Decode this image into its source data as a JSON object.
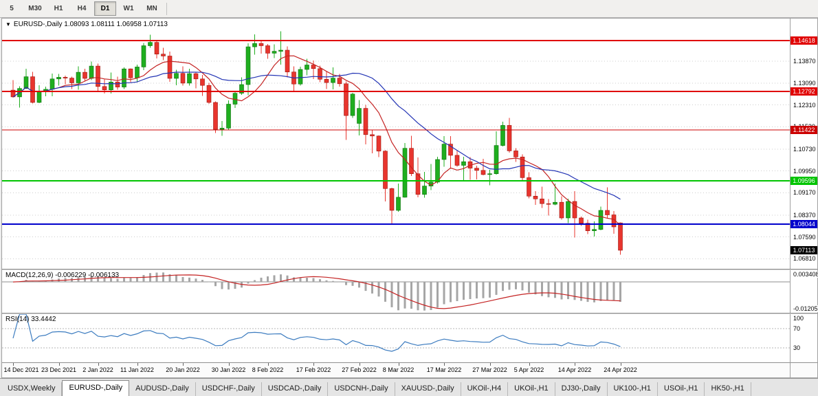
{
  "toolbar": {
    "timeframes": [
      {
        "label": "5",
        "active": false
      },
      {
        "label": "M30",
        "active": false
      },
      {
        "label": "H1",
        "active": false
      },
      {
        "label": "H4",
        "active": false
      },
      {
        "label": "D1",
        "active": true
      },
      {
        "label": "W1",
        "active": false
      },
      {
        "label": "MN",
        "active": false
      }
    ]
  },
  "chart": {
    "header": "EURUSD-,Daily 1.08093 1.08111 1.06958 1.07113",
    "dropdown_arrow": "▼"
  },
  "indicators": {
    "macd": {
      "label": "MACD(12,26,9) -0.006229 -0.006133",
      "scale_top": "0.003408",
      "scale_bottom": "-0.01205"
    },
    "rsi": {
      "label": "RSI(14) 33.4442",
      "scale_labels": [
        "100",
        "70",
        "30"
      ]
    }
  },
  "chart_data": [
    {
      "type": "candlestick",
      "title": "EURUSD-,Daily",
      "displayed_ohlc": [
        "1.08093",
        "1.08111",
        "1.06958",
        "1.07113"
      ],
      "ylim": [
        1.0645,
        1.154
      ],
      "up_color": "#1fae1f",
      "down_color": "#e8352e",
      "up_border": "#0b6e0b",
      "down_border": "#9c150e",
      "y_tick_labels": [
        "1.13870",
        "1.13090",
        "1.12310",
        "1.11530",
        "1.10730",
        "1.09950",
        "1.09170",
        "1.08370",
        "1.07590",
        "1.06810"
      ],
      "x_ticks": [
        {
          "index": 0,
          "label": "14 Dec 2021"
        },
        {
          "index": 7,
          "label": "23 Dec 2021"
        },
        {
          "index": 13,
          "label": "2 Jan 2022"
        },
        {
          "index": 19,
          "label": "11 Jan 2022"
        },
        {
          "index": 26,
          "label": "20 Jan 2022"
        },
        {
          "index": 33,
          "label": "30 Jan 2022"
        },
        {
          "index": 39,
          "label": "8 Feb 2022"
        },
        {
          "index": 46,
          "label": "17 Feb 2022"
        },
        {
          "index": 53,
          "label": "27 Feb 2022"
        },
        {
          "index": 59,
          "label": "8 Mar 2022"
        },
        {
          "index": 66,
          "label": "17 Mar 2022"
        },
        {
          "index": 73,
          "label": "27 Mar 2022"
        },
        {
          "index": 79,
          "label": "5 Apr 2022"
        },
        {
          "index": 86,
          "label": "14 Apr 2022"
        },
        {
          "index": 93,
          "label": "24 Apr 2022"
        }
      ],
      "hlines": [
        {
          "price": 1.14618,
          "label": "1.14618",
          "color": "#e00000",
          "width": 2
        },
        {
          "price": 1.12792,
          "label": "1.12792",
          "color": "#e00000",
          "width": 2
        },
        {
          "price": 1.11422,
          "label": "1.11422",
          "color": "#cc0000",
          "width": 1
        },
        {
          "price": 1.09596,
          "label": "1.09596",
          "color": "#00c400",
          "width": 2
        },
        {
          "price": 1.08044,
          "label": "1.08044",
          "color": "#0000cc",
          "width": 2
        }
      ],
      "last_price_badge": {
        "price": 1.07113,
        "label": "1.07113",
        "color": "#000000"
      },
      "overlays": [
        {
          "name": "ma-fast",
          "type": "sma",
          "period": 8,
          "color": "#c42222"
        },
        {
          "name": "ma-slow",
          "type": "sma",
          "period": 20,
          "color": "#2233b4"
        }
      ],
      "ohlc": [
        [
          1.1284,
          1.132,
          1.1257,
          1.126
        ],
        [
          1.126,
          1.1298,
          1.1222,
          1.129
        ],
        [
          1.129,
          1.136,
          1.1288,
          1.1332
        ],
        [
          1.1332,
          1.1349,
          1.1236,
          1.124
        ],
        [
          1.124,
          1.1302,
          1.1237,
          1.1278
        ],
        [
          1.1278,
          1.1296,
          1.1262,
          1.1287
        ],
        [
          1.1287,
          1.1343,
          1.1262,
          1.1324
        ],
        [
          1.1324,
          1.1342,
          1.13,
          1.133
        ],
        [
          1.133,
          1.1336,
          1.1305,
          1.1327
        ],
        [
          1.1327,
          1.1332,
          1.1288,
          1.131
        ],
        [
          1.131,
          1.1369,
          1.1285,
          1.1348
        ],
        [
          1.1348,
          1.136,
          1.1315,
          1.1326
        ],
        [
          1.1326,
          1.1386,
          1.132,
          1.137
        ],
        [
          1.137,
          1.1379,
          1.1279,
          1.1297
        ],
        [
          1.1297,
          1.1323,
          1.1272,
          1.1285
        ],
        [
          1.1285,
          1.1347,
          1.1272,
          1.1313
        ],
        [
          1.1313,
          1.1332,
          1.1285,
          1.1295
        ],
        [
          1.1295,
          1.1365,
          1.1288,
          1.136
        ],
        [
          1.136,
          1.1362,
          1.1313,
          1.1328
        ],
        [
          1.1328,
          1.1375,
          1.1314,
          1.1367
        ],
        [
          1.1367,
          1.1453,
          1.1355,
          1.1443
        ],
        [
          1.1443,
          1.1482,
          1.1435,
          1.1455
        ],
        [
          1.1455,
          1.1459,
          1.1398,
          1.1413
        ],
        [
          1.1413,
          1.1435,
          1.1391,
          1.1406
        ],
        [
          1.1406,
          1.1422,
          1.1314,
          1.1326
        ],
        [
          1.1326,
          1.1357,
          1.1301,
          1.1344
        ],
        [
          1.1344,
          1.1369,
          1.13,
          1.1309
        ],
        [
          1.1309,
          1.136,
          1.13,
          1.1343
        ],
        [
          1.1343,
          1.1349,
          1.129,
          1.1324
        ],
        [
          1.1324,
          1.1338,
          1.1263,
          1.1301
        ],
        [
          1.1301,
          1.131,
          1.1235,
          1.124
        ],
        [
          1.124,
          1.1244,
          1.1131,
          1.1144
        ],
        [
          1.1144,
          1.1174,
          1.1121,
          1.1148
        ],
        [
          1.1148,
          1.1248,
          1.1141,
          1.1234
        ],
        [
          1.1234,
          1.1279,
          1.122,
          1.1273
        ],
        [
          1.1273,
          1.133,
          1.1267,
          1.1304
        ],
        [
          1.1304,
          1.1451,
          1.1266,
          1.1439
        ],
        [
          1.1439,
          1.1483,
          1.1411,
          1.1451
        ],
        [
          1.1451,
          1.1464,
          1.1415,
          1.1443
        ],
        [
          1.1443,
          1.1449,
          1.1396,
          1.1416
        ],
        [
          1.1416,
          1.1448,
          1.1399,
          1.1423
        ],
        [
          1.1423,
          1.1494,
          1.1375,
          1.1427
        ],
        [
          1.1427,
          1.144,
          1.133,
          1.1349
        ],
        [
          1.1349,
          1.1369,
          1.128,
          1.1306
        ],
        [
          1.1306,
          1.1368,
          1.13,
          1.1358
        ],
        [
          1.1358,
          1.1396,
          1.1337,
          1.1374
        ],
        [
          1.1374,
          1.139,
          1.1324,
          1.1361
        ],
        [
          1.1361,
          1.1371,
          1.1312,
          1.1323
        ],
        [
          1.1323,
          1.1349,
          1.1288,
          1.1311
        ],
        [
          1.1311,
          1.1366,
          1.1287,
          1.1327
        ],
        [
          1.1327,
          1.1342,
          1.1296,
          1.1307
        ],
        [
          1.1307,
          1.1315,
          1.1106,
          1.1193
        ],
        [
          1.1193,
          1.1274,
          1.1185,
          1.127
        ],
        [
          1.1165,
          1.1249,
          1.1122,
          1.1219
        ],
        [
          1.1219,
          1.1232,
          1.109,
          1.1125
        ],
        [
          1.1125,
          1.1143,
          1.1058,
          1.112
        ],
        [
          1.112,
          1.1122,
          1.1045,
          1.1066
        ],
        [
          1.1066,
          1.1069,
          1.0886,
          1.0932
        ],
        [
          1.0932,
          1.0935,
          1.0806,
          1.0854
        ],
        [
          1.0854,
          1.095,
          1.0849,
          1.0901
        ],
        [
          1.0901,
          1.1095,
          1.0899,
          1.1076
        ],
        [
          1.1076,
          1.1121,
          1.0977,
          1.0985
        ],
        [
          1.0985,
          1.1043,
          1.0901,
          1.0911
        ],
        [
          1.0911,
          1.0992,
          1.09,
          1.0941
        ],
        [
          1.0941,
          1.102,
          1.0926,
          1.0955
        ],
        [
          1.0955,
          1.1046,
          1.095,
          1.1036
        ],
        [
          1.1036,
          1.1119,
          1.101,
          1.1091
        ],
        [
          1.1091,
          1.1119,
          1.1003,
          1.1051
        ],
        [
          1.1051,
          1.1069,
          1.101,
          1.1015
        ],
        [
          1.1015,
          1.1046,
          1.0962,
          1.1028
        ],
        [
          1.1028,
          1.1044,
          1.0963,
          1.1005
        ],
        [
          1.1005,
          1.1014,
          1.0965,
          1.0997
        ],
        [
          1.0997,
          1.1039,
          1.0979,
          1.0982
        ],
        [
          1.0982,
          1.0999,
          1.0944,
          1.0985
        ],
        [
          1.0985,
          1.1137,
          1.0982,
          1.1086
        ],
        [
          1.1086,
          1.1171,
          1.1083,
          1.1158
        ],
        [
          1.1158,
          1.1185,
          1.1061,
          1.1067
        ],
        [
          1.1067,
          1.1076,
          1.1027,
          1.1045
        ],
        [
          1.1045,
          1.1055,
          1.0961,
          1.0971
        ],
        [
          1.0971,
          1.0991,
          1.0897,
          1.0905
        ],
        [
          1.0905,
          1.0923,
          1.0874,
          1.0895
        ],
        [
          1.0895,
          1.0939,
          1.0863,
          1.0878
        ],
        [
          1.0878,
          1.0894,
          1.0836,
          1.0876
        ],
        [
          1.0876,
          1.095,
          1.0872,
          1.0883
        ],
        [
          1.0883,
          1.0904,
          1.0821,
          1.0827
        ],
        [
          1.0827,
          1.0896,
          1.0809,
          1.0886
        ],
        [
          1.0886,
          1.0923,
          1.0757,
          1.0827
        ],
        [
          1.0827,
          1.0832,
          1.0799,
          1.0808
        ],
        [
          1.0808,
          1.0821,
          1.0769,
          1.0781
        ],
        [
          1.0781,
          1.0815,
          1.0761,
          1.0786
        ],
        [
          1.0786,
          1.0867,
          1.0783,
          1.0854
        ],
        [
          1.0854,
          1.0936,
          1.0824,
          1.0838
        ],
        [
          1.0838,
          1.0852,
          1.077,
          1.0795
        ],
        [
          1.08093,
          1.08111,
          1.06958,
          1.07113
        ]
      ]
    },
    {
      "type": "macd",
      "params": [
        12,
        26,
        9
      ],
      "values_label": "-0.006229 -0.006133",
      "histogram_color": "#a6a6a6",
      "signal_color": "#c42222",
      "zero_line_color": "#8e8e8e"
    },
    {
      "type": "rsi",
      "period": 14,
      "value": 33.4442,
      "color": "#3b7bbf",
      "levels": [
        70,
        30
      ],
      "range": [
        0,
        100
      ]
    }
  ],
  "tabs": [
    {
      "label": "USDX,Weekly",
      "active": false
    },
    {
      "label": "EURUSD-,Daily",
      "active": true
    },
    {
      "label": "AUDUSD-,Daily",
      "active": false
    },
    {
      "label": "USDCHF-,Daily",
      "active": false
    },
    {
      "label": "USDCAD-,Daily",
      "active": false
    },
    {
      "label": "USDCNH-,Daily",
      "active": false
    },
    {
      "label": "XAUUSD-,Daily",
      "active": false
    },
    {
      "label": "UKOil-,H4",
      "active": false
    },
    {
      "label": "UKOil-,H1",
      "active": false
    },
    {
      "label": "DJ30-,Daily",
      "active": false
    },
    {
      "label": "UK100-,H1",
      "active": false
    },
    {
      "label": "USOil-,H1",
      "active": false
    },
    {
      "label": "HK50-,H1",
      "active": false
    }
  ]
}
